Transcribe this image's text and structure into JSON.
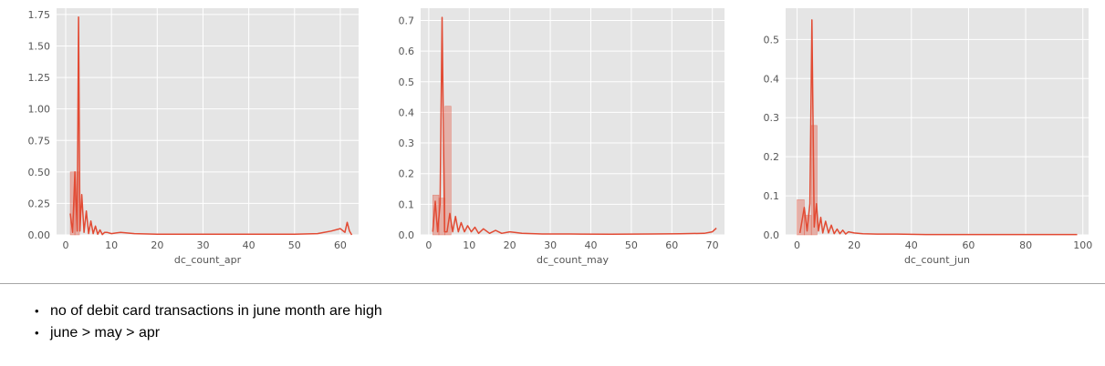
{
  "colors": {
    "panel": "#e5e5e5",
    "grid": "#ffffff",
    "line": "#e24a33",
    "bar_fill": "#e24a33",
    "text": "#555555"
  },
  "chart_data": [
    {
      "type": "histogram_kde",
      "xlabel": "dc_count_apr",
      "xlim": [
        -2,
        64
      ],
      "ylim": [
        0,
        1.8
      ],
      "xticks": [
        0,
        10,
        20,
        30,
        40,
        50,
        60
      ],
      "yticks": [
        0.0,
        0.25,
        0.5,
        0.75,
        1.0,
        1.25,
        1.5,
        1.75
      ],
      "ytick_labels": [
        "0.00",
        "0.25",
        "0.50",
        "0.75",
        "1.00",
        "1.25",
        "1.50",
        "1.75"
      ],
      "bar_edges": [
        1,
        2,
        3
      ],
      "bar_values": [
        0.5,
        0.5
      ],
      "kde_x": [
        1,
        1.5,
        2,
        2.5,
        2.8,
        3.1,
        3.5,
        4,
        4.5,
        5,
        5.5,
        6,
        6.5,
        7,
        7.5,
        8,
        8.5,
        9,
        10,
        12,
        15,
        20,
        30,
        40,
        50,
        55,
        58,
        60,
        61,
        61.5,
        62,
        62.5
      ],
      "kde_y": [
        0.17,
        0.02,
        0.5,
        0.03,
        1.73,
        0.03,
        0.32,
        0.02,
        0.19,
        0.01,
        0.11,
        0.01,
        0.07,
        0.005,
        0.04,
        0.003,
        0.02,
        0.02,
        0.01,
        0.02,
        0.01,
        0.005,
        0.005,
        0.005,
        0.005,
        0.01,
        0.03,
        0.05,
        0.02,
        0.1,
        0.03,
        0.0
      ]
    },
    {
      "type": "histogram_kde",
      "xlabel": "dc_count_may",
      "xlim": [
        -2,
        73
      ],
      "ylim": [
        0,
        0.74
      ],
      "xticks": [
        0,
        10,
        20,
        30,
        40,
        50,
        60,
        70
      ],
      "yticks": [
        0.0,
        0.1,
        0.2,
        0.3,
        0.4,
        0.5,
        0.6,
        0.7
      ],
      "ytick_labels": [
        "0.0",
        "0.1",
        "0.2",
        "0.3",
        "0.4",
        "0.5",
        "0.6",
        "0.7"
      ],
      "bar_edges": [
        1,
        2.5,
        4,
        5.5
      ],
      "bar_values": [
        0.13,
        0.12,
        0.42
      ],
      "kde_x": [
        1,
        1.6,
        2.2,
        2.8,
        3.3,
        3.9,
        4.5,
        5.2,
        5.9,
        6.6,
        7.3,
        8,
        8.8,
        9.6,
        10.5,
        11.4,
        12.3,
        13.5,
        15,
        16.5,
        18,
        20,
        23,
        28,
        35,
        45,
        55,
        62,
        68,
        70,
        71
      ],
      "kde_y": [
        0.01,
        0.11,
        0.01,
        0.1,
        0.71,
        0.01,
        0.01,
        0.07,
        0.01,
        0.06,
        0.01,
        0.04,
        0.01,
        0.03,
        0.01,
        0.025,
        0.005,
        0.02,
        0.005,
        0.015,
        0.005,
        0.01,
        0.005,
        0.003,
        0.003,
        0.002,
        0.003,
        0.004,
        0.005,
        0.01,
        0.022
      ]
    },
    {
      "type": "histogram_kde",
      "xlabel": "dc_count_jun",
      "xlim": [
        -4,
        102
      ],
      "ylim": [
        0,
        0.58
      ],
      "xticks": [
        0,
        20,
        40,
        60,
        80,
        100
      ],
      "yticks": [
        0.0,
        0.1,
        0.2,
        0.3,
        0.4,
        0.5
      ],
      "ytick_labels": [
        "0.0",
        "0.1",
        "0.2",
        "0.3",
        "0.4",
        "0.5"
      ],
      "bar_edges": [
        0,
        2.5,
        5,
        7
      ],
      "bar_values": [
        0.09,
        0.05,
        0.28
      ],
      "kde_x": [
        1,
        2.5,
        3.5,
        4.5,
        5.2,
        6,
        6.8,
        7.5,
        8.3,
        9,
        10,
        11,
        12,
        13,
        14,
        15,
        16,
        17,
        18,
        20,
        23,
        28,
        35,
        45,
        60,
        80,
        98
      ],
      "kde_y": [
        0.005,
        0.07,
        0.01,
        0.08,
        0.55,
        0.02,
        0.08,
        0.01,
        0.045,
        0.005,
        0.035,
        0.005,
        0.025,
        0.003,
        0.015,
        0.003,
        0.012,
        0.002,
        0.008,
        0.005,
        0.003,
        0.002,
        0.002,
        0.001,
        0.001,
        0.001,
        0.001
      ]
    }
  ],
  "notes": [
    {
      "bullet": "•",
      "text": "no of debit card transactions in june month are high"
    },
    {
      "bullet": "•",
      "text": "june > may > apr"
    }
  ]
}
